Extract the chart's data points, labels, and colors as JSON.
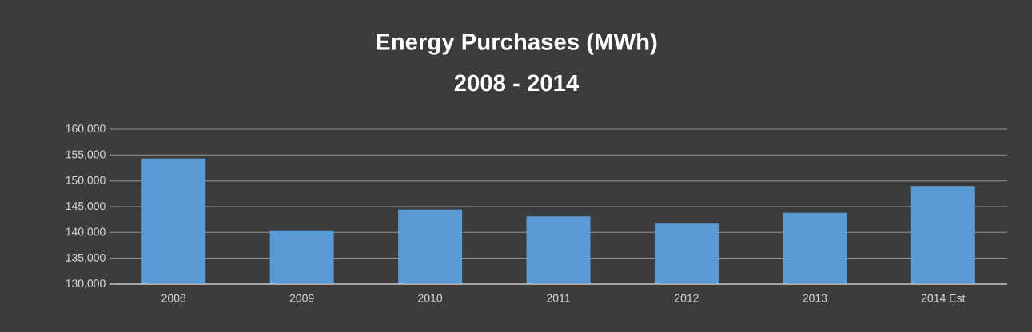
{
  "chart_data": {
    "type": "bar",
    "title": "Energy Purchases (MWh)",
    "subtitle": "2008 - 2014",
    "categories": [
      "2008",
      "2009",
      "2010",
      "2011",
      "2012",
      "2013",
      "2014 Est"
    ],
    "values": [
      154300,
      140400,
      144400,
      143100,
      141700,
      143800,
      149000
    ],
    "color": "#5b9bd5",
    "ylim": [
      130000,
      160000
    ],
    "yticks": [
      {
        "value": 130000,
        "label": "130,000"
      },
      {
        "value": 135000,
        "label": "135,000"
      },
      {
        "value": 140000,
        "label": "140,000"
      },
      {
        "value": 145000,
        "label": "145,000"
      },
      {
        "value": 150000,
        "label": "150,000"
      },
      {
        "value": 155000,
        "label": "155,000"
      },
      {
        "value": 160000,
        "label": "160,000"
      }
    ],
    "grid": "y"
  }
}
